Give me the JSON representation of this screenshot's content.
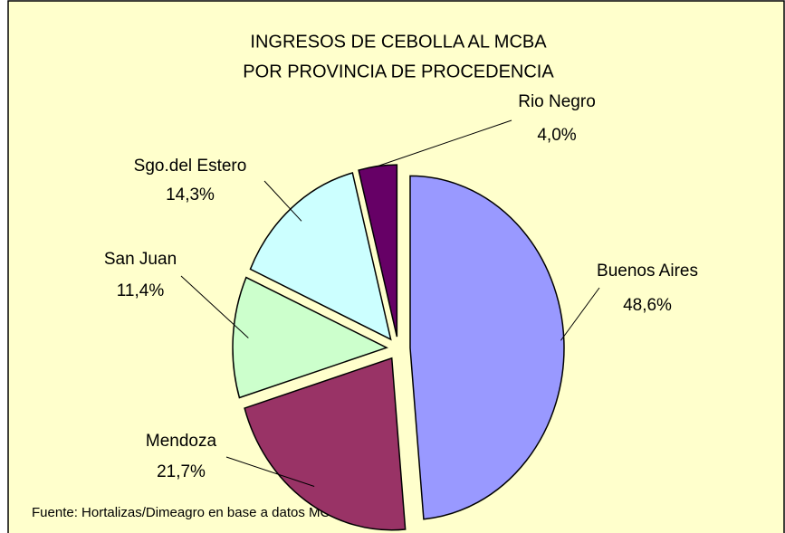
{
  "chart_data": {
    "type": "pie",
    "title_lines": [
      "INGRESOS DE CEBOLLA AL MCBA",
      "POR PROVINCIA DE PROCEDENCIA"
    ],
    "categories": [
      "Buenos Aires",
      "Mendoza",
      "San Juan",
      "Sgo.del Estero",
      "Rio Negro"
    ],
    "values": [
      48.6,
      21.7,
      11.4,
      14.3,
      4.0
    ],
    "value_labels": [
      "48,6%",
      "21,7%",
      "11,4%",
      "14,3%",
      "4,0%"
    ],
    "colors": [
      "#9999ff",
      "#993366",
      "#ccffcc",
      "#ccffff",
      "#660066"
    ],
    "source": "Fuente: Hortalizas/Dimeagro en base a datos MCBA"
  }
}
